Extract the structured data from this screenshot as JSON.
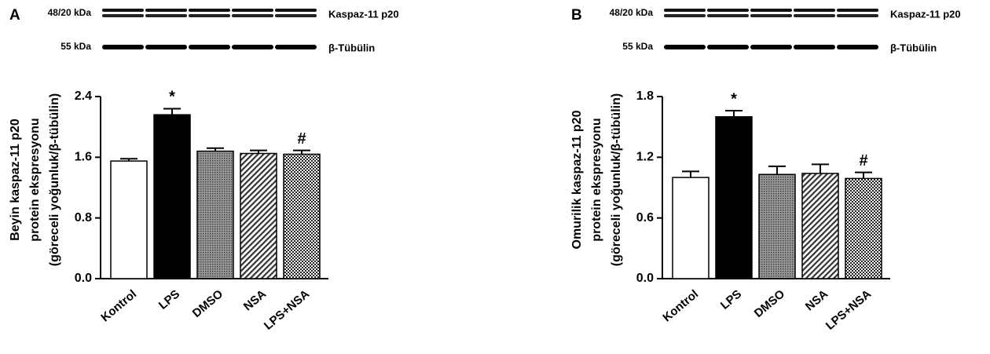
{
  "chart_data": [
    {
      "type": "bar",
      "panel": "A",
      "blot": {
        "rows": [
          {
            "size": "48/20 kDa",
            "protein": "Kaspaz-11 p20"
          },
          {
            "size": "55 kDa",
            "protein": "β-Tübülin"
          }
        ]
      },
      "ylabel": [
        "Beyin kaspaz-11 p20",
        "protein ekspresyonu",
        "(göreceli yoğunluk/β-tübülin)"
      ],
      "categories": [
        "Kontrol",
        "LPS",
        "DMSO",
        "NSA",
        "LPS+NSA"
      ],
      "values": [
        1.55,
        2.16,
        1.68,
        1.65,
        1.64
      ],
      "errors": [
        0.03,
        0.08,
        0.04,
        0.04,
        0.05
      ],
      "fills": [
        "white",
        "black",
        "dots",
        "stripes",
        "checker"
      ],
      "annotations": [
        {
          "text": "*",
          "category": "LPS"
        },
        {
          "text": "#",
          "category": "LPS+NSA"
        }
      ],
      "ylim": [
        0,
        2.4
      ],
      "yticks": [
        {
          "value": 0,
          "label": "0.0"
        },
        0.8,
        1.6,
        2.4
      ]
    },
    {
      "type": "bar",
      "panel": "B",
      "blot": {
        "rows": [
          {
            "size": "48/20 kDa",
            "protein": "Kaspaz-11 p20"
          },
          {
            "size": "55 kDa",
            "protein": "β-Tübülin"
          }
        ]
      },
      "ylabel": [
        "Omurilik kaspaz-11 p20",
        "protein ekspresyonu",
        "(göreceli yoğunluk/β-tübülin)"
      ],
      "categories": [
        "Kontrol",
        "LPS",
        "DMSO",
        "NSA",
        "LPS+NSA"
      ],
      "values": [
        1.0,
        1.6,
        1.03,
        1.04,
        0.99
      ],
      "errors": [
        0.06,
        0.06,
        0.08,
        0.09,
        0.06
      ],
      "fills": [
        "white",
        "black",
        "dots",
        "stripes",
        "checker"
      ],
      "annotations": [
        {
          "text": "*",
          "category": "LPS"
        },
        {
          "text": "#",
          "category": "LPS+NSA"
        }
      ],
      "ylim": [
        0,
        1.8
      ],
      "yticks": [
        {
          "value": 0,
          "label": "0.0"
        },
        0.6,
        1.2,
        1.8
      ]
    }
  ]
}
